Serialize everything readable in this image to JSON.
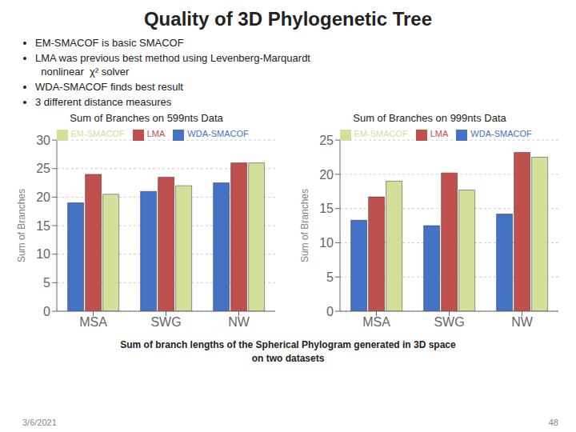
{
  "title": "Quality of 3D Phylogenetic Tree",
  "annotations": {
    "bullets": [
      "EM-SMACOF is basic SMACOF",
      "LMA was previous best method using Levenberg-Marquardt\n  nonlinear  χ² solver",
      "WDA-SMACOF finds best result",
      "3 different distance measures"
    ],
    "caption": [
      "Sum of branch lengths of the Spherical Phylogram generated in 3D space",
      "on two datasets"
    ],
    "date": "3/6/2021",
    "slide_number": "48"
  },
  "chart_data": [
    {
      "type": "bar",
      "title": "Sum of Branches on 599nts Data",
      "categories": [
        "MSA",
        "SWG",
        "NW"
      ],
      "series": [
        {
          "name": "WDA-SMACOF",
          "color": "#4472c4",
          "values": [
            19.0,
            21.0,
            22.5
          ]
        },
        {
          "name": "LMA",
          "color": "#c0504d",
          "values": [
            24.0,
            23.5,
            26.0
          ]
        },
        {
          "name": "EM-SMACOF",
          "color": "#d4e09a",
          "values": [
            20.5,
            22.0,
            26.0
          ]
        }
      ],
      "ylabel": "Sum of Branches",
      "ylim": [
        0,
        30
      ],
      "yticks": [
        0,
        5,
        10,
        15,
        20,
        25,
        30
      ],
      "grid": true,
      "legend": "upper left"
    },
    {
      "type": "bar",
      "title": "Sum of Branches on 999nts Data",
      "categories": [
        "MSA",
        "SWG",
        "NW"
      ],
      "series": [
        {
          "name": "WDA-SMACOF",
          "color": "#4472c4",
          "values": [
            13.3,
            12.5,
            14.2
          ]
        },
        {
          "name": "LMA",
          "color": "#c0504d",
          "values": [
            16.7,
            20.2,
            23.2
          ]
        },
        {
          "name": "EM-SMACOF",
          "color": "#d4e09a",
          "values": [
            19.0,
            17.7,
            22.5
          ]
        }
      ],
      "ylabel": "Sum of Branches",
      "ylim": [
        0,
        25
      ],
      "yticks": [
        0,
        5,
        10,
        15,
        20,
        25
      ],
      "grid": true,
      "legend": "upper left"
    }
  ]
}
